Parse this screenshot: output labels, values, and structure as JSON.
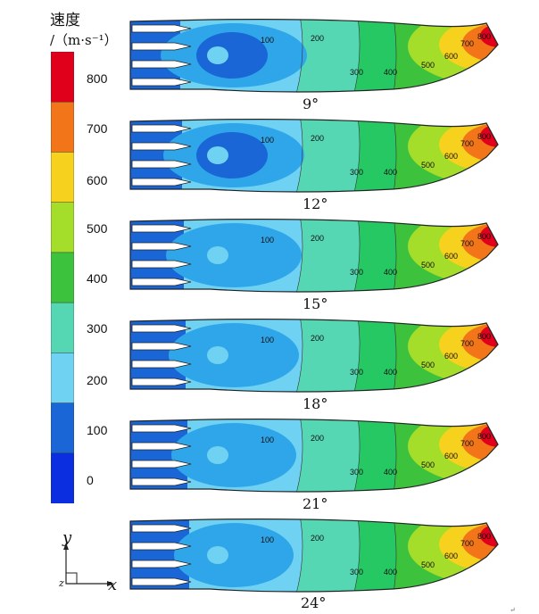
{
  "legend": {
    "title_line1": "速度",
    "title_line2": "/（m·s⁻¹）",
    "ticks": [
      "800",
      "700",
      "600",
      "500",
      "400",
      "300",
      "200",
      "100",
      "0"
    ],
    "colors": [
      "#e0001c",
      "#f2751a",
      "#f6d21e",
      "#a4dd2a",
      "#3dc23d",
      "#26c864",
      "#55d7b4",
      "#6fd2f2",
      "#2fa6ea",
      "#1a66d6",
      "#0a2ee0"
    ]
  },
  "panels": [
    {
      "angle": "9°",
      "contour_labels": [
        "100",
        "200",
        "300",
        "400",
        "500",
        "600",
        "700",
        "800"
      ]
    },
    {
      "angle": "12°",
      "contour_labels": [
        "100",
        "200",
        "300",
        "400",
        "500",
        "600",
        "700",
        "800"
      ]
    },
    {
      "angle": "15°",
      "contour_labels": [
        "100",
        "200",
        "300",
        "400",
        "500",
        "600",
        "700",
        "800"
      ]
    },
    {
      "angle": "18°",
      "contour_labels": [
        "100",
        "200",
        "300",
        "400",
        "500",
        "600",
        "700",
        "800"
      ]
    },
    {
      "angle": "21°",
      "contour_labels": [
        "100",
        "200",
        "300",
        "400",
        "500",
        "600",
        "700",
        "800"
      ]
    },
    {
      "angle": "24°",
      "contour_labels": [
        "100",
        "200",
        "300",
        "400",
        "500",
        "600",
        "700",
        "800"
      ]
    }
  ],
  "axes": {
    "y": "y",
    "x": "x",
    "z": "z"
  }
}
